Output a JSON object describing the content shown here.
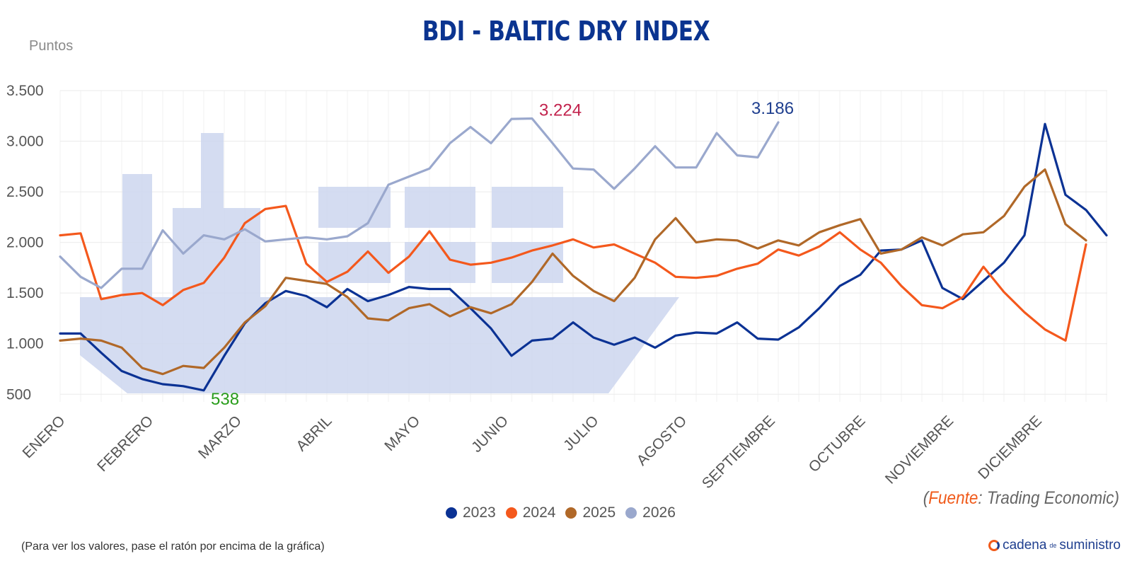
{
  "title": "BDI - BALTIC DRY INDEX",
  "colors": {
    "2023": "#0b3294",
    "2024": "#f4581c",
    "2025": "#b06828",
    "2026": "#9aa8cd",
    "grid": "#ececec",
    "ship": "#cdd6ee"
  },
  "chart_data": {
    "type": "line",
    "title": "BDI - BALTIC DRY INDEX",
    "ylabel": "Puntos",
    "xlabel": "",
    "ylim": [
      500,
      3500
    ],
    "y_ticks": [
      "500",
      "1.000",
      "1.500",
      "2.000",
      "2.500",
      "3.000",
      "3.500"
    ],
    "y_tick_values": [
      500,
      1000,
      1500,
      2000,
      2500,
      3000,
      3500
    ],
    "months": [
      "ENERO",
      "FEBRERO",
      "MARZO",
      "ABRIL",
      "MAYO",
      "JUNIO",
      "JULIO",
      "AGOSTO",
      "SEPTIEMBRE",
      "OCTUBRE",
      "NOVIEMBRE",
      "DICIEMBRE"
    ],
    "month_week_index": [
      0,
      4.3,
      8.6,
      13,
      17.3,
      21.6,
      26,
      30.3,
      34.6,
      39,
      43.3,
      47.6
    ],
    "x_week_count": 52,
    "grid": true,
    "legend_position": "bottom",
    "series": [
      {
        "name": "2023",
        "color": "#0b3294",
        "values": [
          1100,
          1100,
          910,
          730,
          650,
          600,
          580,
          538,
          880,
          1200,
          1400,
          1520,
          1470,
          1360,
          1540,
          1420,
          1480,
          1560,
          1540,
          1540,
          1350,
          1150,
          880,
          1030,
          1050,
          1210,
          1060,
          990,
          1060,
          960,
          1080,
          1110,
          1100,
          1210,
          1050,
          1040,
          1160,
          1350,
          1570,
          1680,
          1920,
          1930,
          2020,
          1550,
          1440,
          1620,
          1800,
          2070,
          3170,
          2470,
          2320,
          2070
        ]
      },
      {
        "name": "2024",
        "color": "#f4581c",
        "values": [
          2070,
          2090,
          1440,
          1480,
          1500,
          1380,
          1530,
          1600,
          1850,
          2190,
          2330,
          2360,
          1790,
          1610,
          1710,
          1910,
          1700,
          1860,
          2110,
          1830,
          1780,
          1800,
          1850,
          1920,
          1970,
          2030,
          1950,
          1980,
          1890,
          1800,
          1660,
          1650,
          1670,
          1740,
          1790,
          1930,
          1870,
          1960,
          2100,
          1930,
          1800,
          1570,
          1380,
          1350,
          1460,
          1760,
          1510,
          1310,
          1140,
          1030,
          1980
        ]
      },
      {
        "name": "2025",
        "color": "#b06828",
        "values": [
          1030,
          1050,
          1030,
          960,
          760,
          700,
          780,
          760,
          960,
          1210,
          1370,
          1650,
          1620,
          1590,
          1460,
          1250,
          1230,
          1350,
          1390,
          1270,
          1360,
          1300,
          1390,
          1610,
          1890,
          1670,
          1520,
          1420,
          1650,
          2030,
          2240,
          2000,
          2030,
          2020,
          1940,
          2020,
          1970,
          2100,
          2170,
          2230,
          1890,
          1930,
          2050,
          1970,
          2080,
          2100,
          2260,
          2550,
          2720,
          2180,
          2020
        ]
      },
      {
        "name": "2026",
        "color": "#9aa8cd",
        "values": [
          1860,
          1660,
          1550,
          1740,
          1740,
          2120,
          1890,
          2070,
          2030,
          2130,
          2010,
          2030,
          2050,
          2030,
          2060,
          2190,
          2570,
          2650,
          2730,
          2980,
          3140,
          2980,
          3220,
          3224,
          2980,
          2730,
          2720,
          2530,
          2730,
          2950,
          2740,
          2740,
          3080,
          2860,
          2840,
          3186
        ]
      }
    ],
    "annotations": [
      {
        "text": "538",
        "series": "2023",
        "index": 7,
        "color": "#2a9d1c"
      },
      {
        "text": "3.224",
        "series": "2026",
        "index": 23,
        "color": "#c2234d"
      },
      {
        "text": "3.186",
        "series": "2026",
        "index": 35,
        "color": "#1f3f8f"
      }
    ]
  },
  "legend": [
    {
      "label": "2023",
      "color": "#0b3294"
    },
    {
      "label": "2024",
      "color": "#f4581c"
    },
    {
      "label": "2025",
      "color": "#b06828"
    },
    {
      "label": "2026",
      "color": "#9aa8cd"
    }
  ],
  "source": {
    "open": "(",
    "label": "Fuente",
    "text": ": Trading Economic)"
  },
  "note": "(Para ver los valores, pase el ratón por encima de la gráfica)",
  "brand": {
    "main": "cadena",
    "small": "de",
    "end": "suministro"
  }
}
